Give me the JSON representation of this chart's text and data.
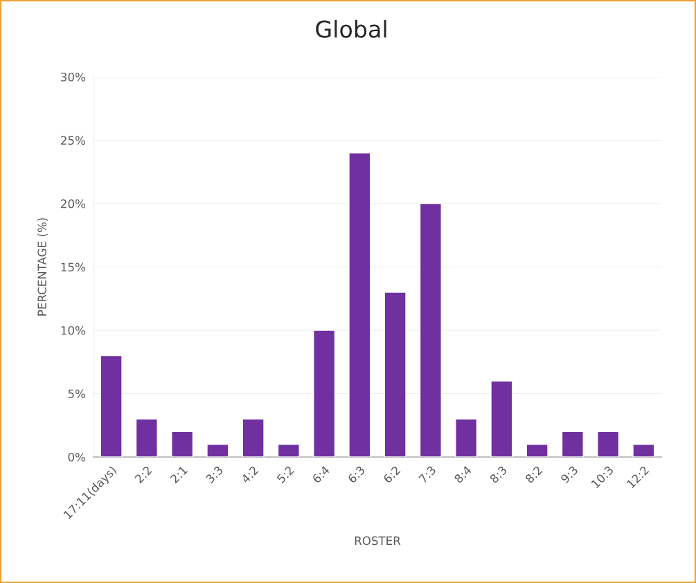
{
  "chart_data": {
    "type": "bar",
    "title": "Global",
    "xlabel": "ROSTER",
    "ylabel": "PERCENTAGE (%)",
    "categories": [
      "17:11(days)",
      "2:2",
      "2:1",
      "3:3",
      "4:2",
      "5:2",
      "6:4",
      "6:3",
      "6:2",
      "7:3",
      "8:4",
      "8:3",
      "8:2",
      "9:3",
      "10:3",
      "12:2"
    ],
    "values": [
      8,
      3,
      2,
      1,
      3,
      1,
      10,
      24,
      13,
      20,
      3,
      6,
      1,
      2,
      2,
      1
    ],
    "color": "#7030a0",
    "ylim": [
      0,
      30
    ],
    "yticks": [
      {
        "value": 0,
        "label": "0%"
      },
      {
        "value": 5,
        "label": "5%"
      },
      {
        "value": 10,
        "label": "10%"
      },
      {
        "value": 15,
        "label": "15%"
      },
      {
        "value": 20,
        "label": "20%"
      },
      {
        "value": 25,
        "label": "25%"
      },
      {
        "value": 30,
        "label": "30%"
      }
    ],
    "grid": "y",
    "legend": false
  }
}
